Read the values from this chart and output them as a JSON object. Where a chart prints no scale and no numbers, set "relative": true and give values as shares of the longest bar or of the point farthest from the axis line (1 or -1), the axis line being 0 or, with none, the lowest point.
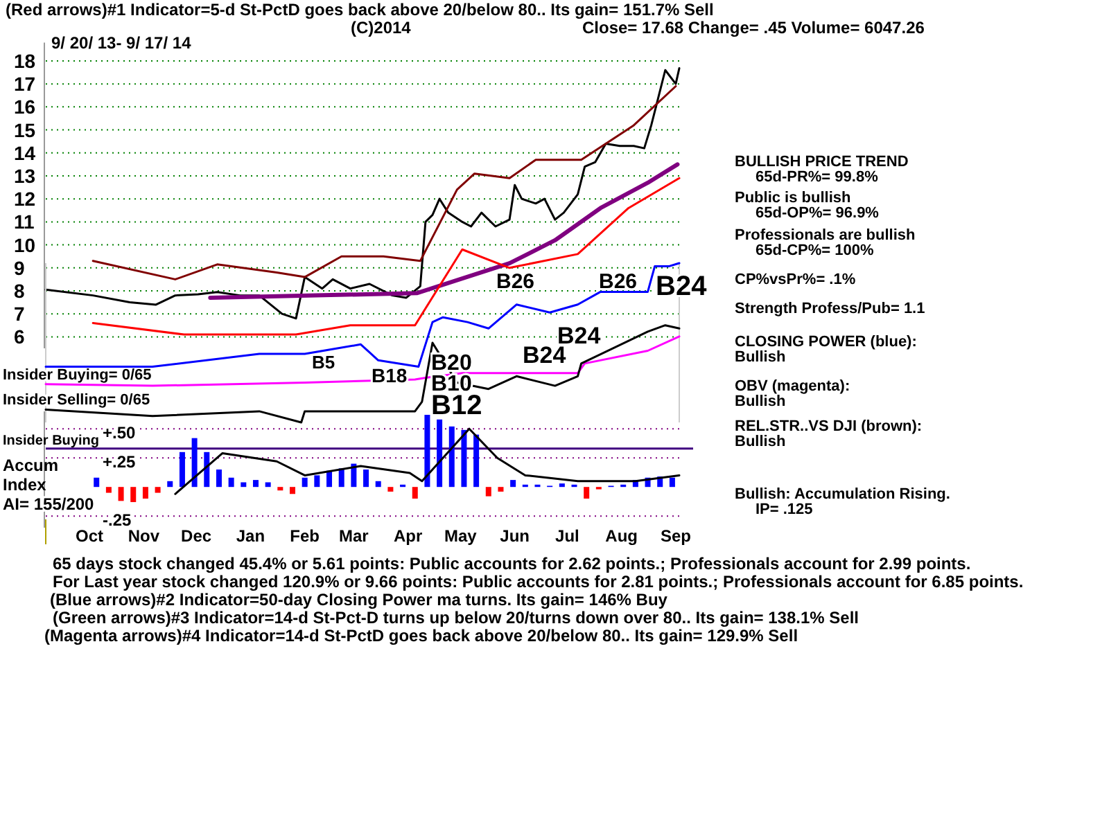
{
  "chart_data": [
    {
      "type": "line",
      "title": "(Red arrows)#1 Indicator=5-d St-PctD goes back above 20/below 80.. Its gain= 151.7% Sell",
      "subtitle": "9/ 20/ 13- 9/ 17/ 14",
      "annotations": [
        "(C)2014",
        "Close=  17.68  Change= .45 Volume= 6047.26"
      ],
      "xlim": [
        "2013-09-20",
        "2014-09-17"
      ],
      "ylim": [
        5.5,
        18.8
      ],
      "yticks": [
        6,
        7,
        8,
        9,
        10,
        11,
        12,
        13,
        14,
        15,
        16,
        17,
        18
      ],
      "grid": "y",
      "tick_labels": "y",
      "series": [
        {
          "color": "#000000",
          "x": [
            "2013-09-20",
            "2013-10-17",
            "2013-11-07",
            "2013-11-22",
            "2013-12-03",
            "2013-12-16",
            "2013-12-27",
            "2014-01-09",
            "2014-01-20",
            "2014-02-02",
            "2014-02-10",
            "2014-02-15",
            "2014-02-25",
            "2014-03-03",
            "2014-03-13",
            "2014-03-24",
            "2014-04-06",
            "2014-04-14",
            "2014-04-22",
            "2014-04-25",
            "2014-04-29",
            "2014-05-03",
            "2014-05-08",
            "2014-05-16",
            "2014-05-21",
            "2014-05-27",
            "2014-06-04",
            "2014-06-12",
            "2014-06-15",
            "2014-06-19",
            "2014-06-27",
            "2014-07-02",
            "2014-07-08",
            "2014-07-13",
            "2014-07-21",
            "2014-07-25",
            "2014-07-31",
            "2014-08-06",
            "2014-08-14",
            "2014-08-22",
            "2014-08-28",
            "2014-09-01",
            "2014-09-05",
            "2014-09-09",
            "2014-09-15",
            "2014-09-17"
          ],
          "values": [
            8.05,
            7.8,
            7.5,
            7.4,
            7.8,
            7.85,
            7.95,
            7.8,
            7.8,
            7.0,
            6.8,
            8.6,
            8.1,
            8.5,
            8.1,
            8.3,
            7.8,
            7.7,
            8.2,
            11.0,
            11.3,
            12.0,
            11.4,
            11.0,
            10.8,
            11.4,
            10.8,
            11.1,
            12.6,
            12.0,
            11.8,
            12.0,
            11.1,
            11.4,
            12.2,
            13.4,
            13.6,
            14.4,
            14.3,
            14.3,
            14.2,
            15.2,
            16.4,
            17.6,
            17.0,
            17.68
          ]
        },
        {
          "color": "#800080",
          "x": [
            "2013-12-23",
            "2014-04-20",
            "2014-06-12",
            "2014-07-08",
            "2014-08-03",
            "2014-08-30",
            "2014-09-16"
          ],
          "values": [
            7.7,
            7.9,
            9.2,
            10.2,
            11.6,
            12.7,
            13.5
          ]
        },
        {
          "color": "#800000",
          "x": [
            "2013-10-17",
            "2013-12-03",
            "2013-12-27",
            "2014-01-30",
            "2014-02-15",
            "2014-03-08",
            "2014-04-01",
            "2014-04-22",
            "2014-05-13",
            "2014-05-23",
            "2014-06-12",
            "2014-06-27",
            "2014-07-23",
            "2014-08-22",
            "2014-09-15"
          ],
          "values": [
            9.3,
            8.5,
            9.15,
            8.8,
            8.6,
            9.5,
            9.5,
            9.3,
            12.4,
            13.1,
            12.9,
            13.7,
            13.7,
            15.2,
            16.9
          ]
        },
        {
          "color": "#ff0000",
          "x": [
            "2013-10-17",
            "2013-12-08",
            "2014-02-10",
            "2014-03-13",
            "2014-04-19",
            "2014-05-16",
            "2014-06-12",
            "2014-07-21",
            "2014-08-19",
            "2014-09-17"
          ],
          "values": [
            6.6,
            6.1,
            6.1,
            6.5,
            6.5,
            9.8,
            9.0,
            9.6,
            11.6,
            12.9
          ]
        }
      ]
    },
    {
      "type": "line",
      "relative": true,
      "xlim": [
        "2013-09-20",
        "2014-09-17"
      ],
      "tick_labels": false,
      "annotations": [
        "Insider Buying= 0/65",
        "Insider Selling= 0/65",
        "B26",
        "B26",
        "B24",
        "B5",
        "B18",
        "B20",
        "B10",
        "B12",
        "B24",
        "B24"
      ],
      "series": [
        {
          "color": "#0000ff",
          "x": [
            "2013-09-20",
            "2013-11-20",
            "2014-01-20",
            "2014-02-15",
            "2014-03-19",
            "2014-03-29",
            "2014-04-21",
            "2014-04-29",
            "2014-05-05",
            "2014-05-19",
            "2014-05-31",
            "2014-06-16",
            "2014-07-05",
            "2014-07-21",
            "2014-08-03",
            "2014-08-30",
            "2014-09-03",
            "2014-09-11",
            "2014-09-17"
          ],
          "values": [
            0.35,
            0.35,
            0.43,
            0.43,
            0.49,
            0.39,
            0.35,
            0.63,
            0.66,
            0.63,
            0.59,
            0.74,
            0.69,
            0.74,
            0.82,
            0.82,
            0.98,
            0.98,
            1
          ]
        },
        {
          "color": "#ff00ff",
          "x": [
            "2013-09-20",
            "2013-11-20",
            "2014-02-15",
            "2014-04-19",
            "2014-04-25",
            "2014-05-16",
            "2014-07-21",
            "2014-07-25",
            "2014-08-30",
            "2014-09-17"
          ],
          "values": [
            0.24,
            0.23,
            0.25,
            0.27,
            0.28,
            0.31,
            0.31,
            0.37,
            0.45,
            0.54
          ]
        },
        {
          "color": "#000000",
          "x": [
            "2013-09-20",
            "2013-11-20",
            "2014-01-20",
            "2014-02-13",
            "2014-02-15",
            "2014-04-19",
            "2014-04-23",
            "2014-04-29",
            "2014-05-13",
            "2014-05-31",
            "2014-06-16",
            "2014-07-08",
            "2014-07-21",
            "2014-07-23",
            "2014-08-30",
            "2014-09-09",
            "2014-09-17"
          ],
          "values": [
            0.08,
            0.04,
            0.07,
            0,
            0.07,
            0.07,
            0.13,
            0.5,
            0.25,
            0.21,
            0.29,
            0.23,
            0.29,
            0.37,
            0.57,
            0.61,
            0.59
          ]
        }
      ]
    },
    {
      "type": "bar",
      "ylabel": "Accum Index",
      "xlim": [
        "2013-09-20",
        "2014-09-17"
      ],
      "ylim": [
        -0.35,
        0.65
      ],
      "yticks": [
        {
          "value": 0.5,
          "label": "+.50"
        },
        {
          "value": 0.25,
          "label": "+.25"
        },
        {
          "value": -0.25,
          "label": "-.25"
        }
      ],
      "xticks": [
        {
          "value": "2013-10-15",
          "label": "Oct"
        },
        {
          "value": "2013-11-15",
          "label": "Nov"
        },
        {
          "value": "2013-12-15",
          "label": "Dec"
        },
        {
          "value": "2014-01-15",
          "label": "Jan"
        },
        {
          "value": "2014-02-15",
          "label": "Feb"
        },
        {
          "value": "2014-03-15",
          "label": "Mar"
        },
        {
          "value": "2014-04-15",
          "label": "Apr"
        },
        {
          "value": "2014-05-15",
          "label": "May"
        },
        {
          "value": "2014-06-15",
          "label": "Jun"
        },
        {
          "value": "2014-07-15",
          "label": "Jul"
        },
        {
          "value": "2014-08-15",
          "label": "Aug"
        },
        {
          "value": "2014-09-15",
          "label": "Sep"
        }
      ],
      "grid": "y",
      "ref_lines": [
        {
          "axis": "y",
          "value": 0.33,
          "label": "Insider Buying",
          "color": "#400080"
        }
      ],
      "annotations": [
        "AI= 155/200",
        "65 days stock changed  45.4% or  5.61 points:  Public accounts for  2.62 points.;  Professionals account for  2.99 points.",
        "For Last year stock changed  120.9% or  9.66 points:  Public accounts for  2.81 points.;  Professionals account for  6.85 points.",
        "(Blue arrows)#2 Indicator=50-day Closing Power ma turns. Its gain= 146% Buy",
        "(Green arrows)#3 Indicator=14-d St-Pct-D turns up below 20/turns down over 80.. Its gain= 138.1% Sell",
        "(Magenta arrows)#4 Indicator=14-d St-PctD goes back above 20/below 80.. Its gain= 129.9% Sell"
      ],
      "series": [
        {
          "type": "bar",
          "x": [
            "2013-10-19",
            "2013-10-26",
            "2013-11-02",
            "2013-11-09",
            "2013-11-16",
            "2013-11-23",
            "2013-11-30",
            "2013-12-07",
            "2013-12-14",
            "2013-12-21",
            "2013-12-28",
            "2014-01-04",
            "2014-01-11",
            "2014-01-18",
            "2014-01-25",
            "2014-02-01",
            "2014-02-08",
            "2014-02-15",
            "2014-02-22",
            "2014-03-01",
            "2014-03-08",
            "2014-03-15",
            "2014-03-22",
            "2014-03-29",
            "2014-04-05",
            "2014-04-12",
            "2014-04-19",
            "2014-04-26",
            "2014-05-03",
            "2014-05-10",
            "2014-05-17",
            "2014-05-24",
            "2014-05-31",
            "2014-06-07",
            "2014-06-14",
            "2014-06-21",
            "2014-06-28",
            "2014-07-05",
            "2014-07-12",
            "2014-07-19",
            "2014-07-26",
            "2014-08-02",
            "2014-08-09",
            "2014-08-16",
            "2014-08-23",
            "2014-08-30",
            "2014-09-06",
            "2014-09-13"
          ],
          "values": [
            0.08,
            -0.05,
            -0.12,
            -0.13,
            -0.1,
            -0.05,
            0.05,
            0.3,
            0.42,
            0.3,
            0.15,
            0.08,
            0.04,
            0.06,
            0.04,
            -0.03,
            -0.06,
            0.08,
            0.1,
            0.14,
            0.16,
            0.2,
            0.15,
            0.05,
            -0.04,
            0.02,
            -0.1,
            0.62,
            0.58,
            0.52,
            0.49,
            0.45,
            -0.08,
            -0.04,
            0.06,
            0.02,
            0.02,
            0.01,
            0.03,
            0.02,
            -0.1,
            -0.02,
            0.01,
            0.02,
            0.06,
            0.08,
            0.09,
            0.08
          ],
          "colors": [
            "#0000ff",
            "#ff0000",
            "#ff0000",
            "#ff0000",
            "#ff0000",
            "#ff0000",
            "#0000ff",
            "#0000ff",
            "#0000ff",
            "#0000ff",
            "#0000ff",
            "#0000ff",
            "#0000ff",
            "#0000ff",
            "#0000ff",
            "#ff0000",
            "#ff0000",
            "#0000ff",
            "#0000ff",
            "#0000ff",
            "#0000ff",
            "#0000ff",
            "#0000ff",
            "#0000ff",
            "#ff0000",
            "#0000ff",
            "#ff0000",
            "#0000ff",
            "#0000ff",
            "#0000ff",
            "#0000ff",
            "#0000ff",
            "#ff0000",
            "#ff0000",
            "#0000ff",
            "#0000ff",
            "#0000ff",
            "#0000ff",
            "#0000ff",
            "#0000ff",
            "#ff0000",
            "#ff0000",
            "#0000ff",
            "#0000ff",
            "#0000ff",
            "#0000ff",
            "#0000ff",
            "#0000ff"
          ]
        },
        {
          "type": "line",
          "color": "#000000",
          "x": [
            "2013-12-03",
            "2013-12-30",
            "2014-01-30",
            "2014-02-15",
            "2014-03-19",
            "2014-04-16",
            "2014-04-23",
            "2014-05-20",
            "2014-06-05",
            "2014-06-21",
            "2014-07-21",
            "2014-08-23",
            "2014-09-17"
          ],
          "values": [
            -0.06,
            0.29,
            0.22,
            0.1,
            0.18,
            0.12,
            0.05,
            0.5,
            0.25,
            0.1,
            0.05,
            0.05,
            0.1
          ]
        }
      ]
    },
    {
      "type": "other",
      "annotations": [
        "BULLISH PRICE TREND",
        "65d-PR%= 99.8%",
        "Public is bullish",
        "65d-OP%= 96.9%",
        "Professionals are bullish",
        "65d-CP%= 100%",
        "CP%vsPr%=  .1%",
        "Strength Profess/Pub= 1.1",
        "CLOSING POWER (blue):",
        "Bullish",
        "OBV (magenta):",
        "Bullish",
        "REL.STR..VS DJI (brown):",
        "Bullish",
        "Bullish: Accumulation Rising.",
        "IP=  .125"
      ]
    }
  ]
}
